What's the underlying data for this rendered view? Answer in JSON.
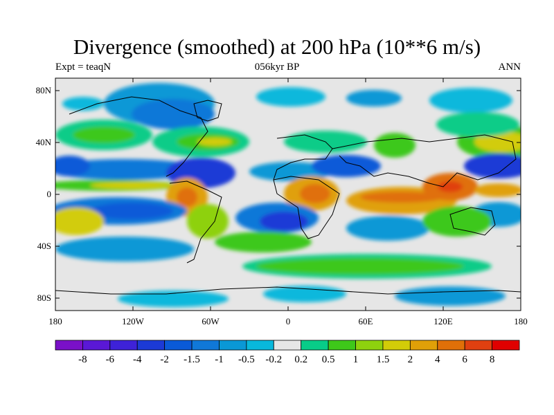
{
  "title": "Divergence (smoothed) at 200 hPa (10**6 m/s)",
  "subtitle_left": "Expt = teaqN",
  "subtitle_center": "056kyr BP",
  "subtitle_right": "ANN",
  "y_ticks": [
    "80N",
    "40N",
    "0",
    "40S",
    "80S"
  ],
  "x_ticks": [
    "180",
    "120W",
    "60W",
    "0",
    "60E",
    "120E",
    "180"
  ],
  "colorbar": {
    "labels": [
      "-8",
      "-6",
      "-4",
      "-2",
      "-1.5",
      "-1",
      "-0.5",
      "-0.2",
      "0.2",
      "0.5",
      "1",
      "1.5",
      "2",
      "4",
      "6",
      "8"
    ],
    "colors": [
      "#7a10c8",
      "#5a18d6",
      "#3e22d8",
      "#1c3ad6",
      "#0a5ad8",
      "#1078d8",
      "#0a98d6",
      "#08b8dc",
      "#e6e6e6",
      "#08cc88",
      "#3ec81a",
      "#8ed10e",
      "#d2cc08",
      "#e0a008",
      "#e07008",
      "#e04010",
      "#e00000"
    ]
  },
  "colors": {
    "neutral": "#e6e6e6",
    "coast": "#000000"
  }
}
